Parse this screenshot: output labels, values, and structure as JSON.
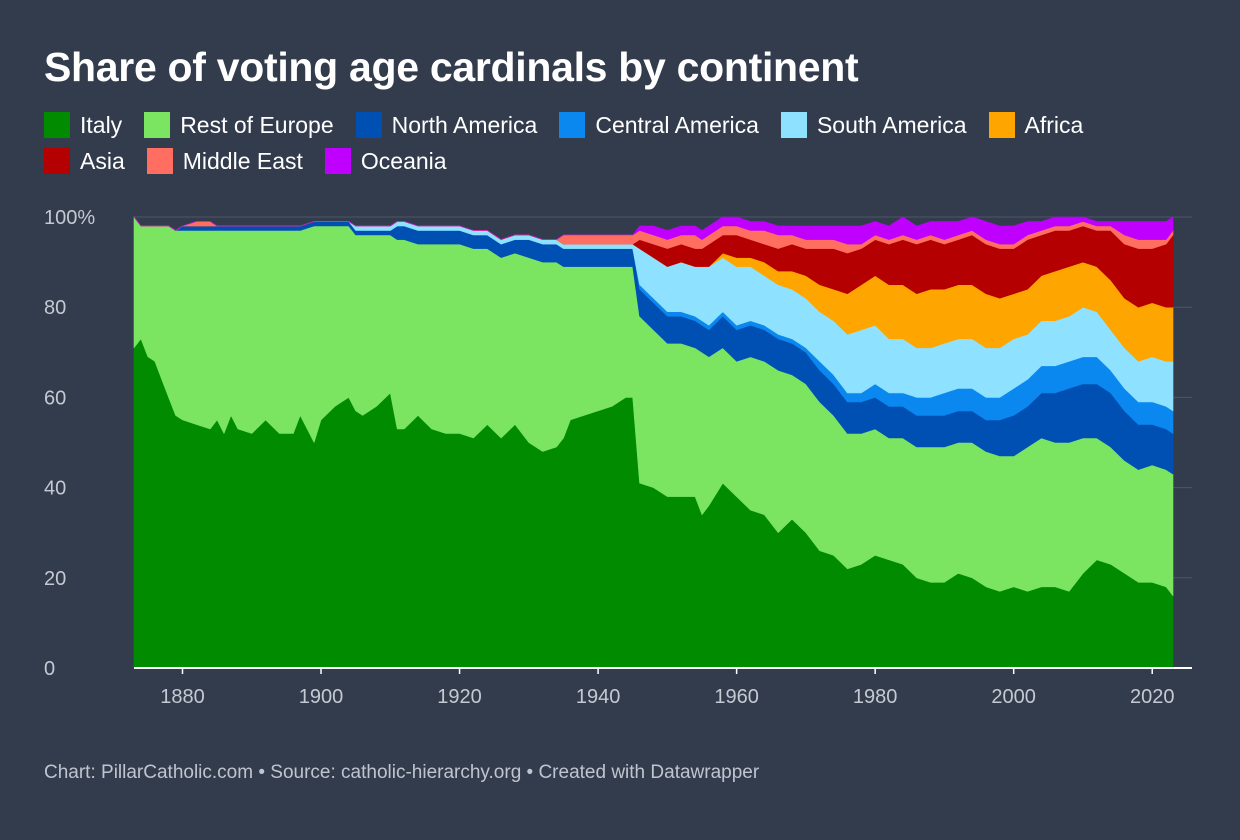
{
  "footer": "Chart: PillarCatholic.com • Source: catholic-hierarchy.org • Created with Datawrapper",
  "chart_data": {
    "type": "area",
    "stacked": true,
    "title": "Share of voting age cardinals by continent",
    "xlabel": "",
    "ylabel": "",
    "ylim": [
      0,
      100
    ],
    "xlim": [
      1873,
      2023
    ],
    "y_ticks": [
      "0",
      "20",
      "40",
      "60",
      "80",
      "100%"
    ],
    "y_tick_values": [
      0,
      20,
      40,
      60,
      80,
      100
    ],
    "x_ticks": [
      "1880",
      "1900",
      "1920",
      "1940",
      "1960",
      "1980",
      "2000",
      "2020"
    ],
    "x_tick_values": [
      1880,
      1900,
      1920,
      1940,
      1960,
      1980,
      2000,
      2020
    ],
    "grid": true,
    "legend_position": "top-left",
    "x": [
      1873,
      1874,
      1875,
      1876,
      1877,
      1878,
      1879,
      1880,
      1882,
      1884,
      1885,
      1886,
      1887,
      1888,
      1890,
      1892,
      1894,
      1896,
      1897,
      1899,
      1900,
      1902,
      1904,
      1905,
      1906,
      1908,
      1910,
      1911,
      1912,
      1914,
      1916,
      1918,
      1920,
      1922,
      1924,
      1926,
      1928,
      1930,
      1932,
      1934,
      1935,
      1936,
      1938,
      1940,
      1942,
      1944,
      1945,
      1946,
      1948,
      1950,
      1952,
      1954,
      1955,
      1956,
      1958,
      1960,
      1962,
      1964,
      1966,
      1968,
      1970,
      1972,
      1974,
      1976,
      1978,
      1980,
      1982,
      1984,
      1986,
      1988,
      1990,
      1992,
      1994,
      1996,
      1998,
      2000,
      2002,
      2004,
      2006,
      2008,
      2010,
      2012,
      2014,
      2016,
      2018,
      2020,
      2022,
      2023
    ],
    "series": [
      {
        "name": "Italy",
        "color": "#008b00",
        "values": [
          71,
          73,
          69,
          68,
          64,
          60,
          56,
          55,
          54,
          53,
          55,
          52,
          56,
          53,
          52,
          55,
          52,
          52,
          56,
          50,
          55,
          58,
          60,
          57,
          56,
          58,
          61,
          53,
          53,
          56,
          53,
          52,
          52,
          51,
          54,
          51,
          54,
          50,
          48,
          49,
          51,
          55,
          56,
          57,
          58,
          60,
          60,
          41,
          40,
          38,
          38,
          38,
          34,
          36,
          41,
          38,
          35,
          34,
          30,
          33,
          30,
          26,
          25,
          22,
          23,
          25,
          24,
          23,
          20,
          19,
          19,
          21,
          20,
          18,
          17,
          18,
          17,
          18,
          18,
          17,
          21,
          24,
          23,
          21,
          19,
          19,
          18,
          16
        ]
      },
      {
        "name": "Rest of Europe",
        "color": "#7be562",
        "values": [
          29,
          25,
          29,
          30,
          34,
          38,
          41,
          42,
          43,
          44,
          42,
          45,
          41,
          44,
          45,
          42,
          45,
          45,
          41,
          48,
          43,
          40,
          38,
          39,
          40,
          38,
          35,
          42,
          42,
          38,
          41,
          42,
          42,
          42,
          39,
          40,
          38,
          41,
          42,
          41,
          38,
          34,
          33,
          32,
          31,
          29,
          29,
          37,
          35,
          34,
          34,
          33,
          36,
          33,
          30,
          30,
          34,
          34,
          36,
          32,
          33,
          33,
          31,
          30,
          29,
          28,
          27,
          28,
          29,
          30,
          30,
          29,
          30,
          30,
          30,
          29,
          32,
          33,
          32,
          33,
          30,
          27,
          26,
          25,
          25,
          26,
          26,
          27
        ]
      },
      {
        "name": "North America",
        "color": "#0050b4",
        "values": [
          0,
          0,
          0,
          0,
          0,
          0,
          0,
          1,
          1,
          1,
          1,
          1,
          1,
          1,
          1,
          1,
          1,
          1,
          1,
          1,
          1,
          1,
          1,
          1,
          1,
          1,
          1,
          3,
          3,
          3,
          3,
          3,
          3,
          3,
          3,
          3,
          3,
          4,
          4,
          4,
          4,
          4,
          4,
          4,
          4,
          4,
          4,
          6,
          6,
          6,
          6,
          6,
          6,
          6,
          7,
          7,
          7,
          7,
          7,
          7,
          7,
          7,
          7,
          7,
          7,
          7,
          7,
          7,
          7,
          7,
          7,
          7,
          7,
          7,
          8,
          9,
          9,
          10,
          11,
          12,
          12,
          12,
          12,
          11,
          10,
          9,
          9,
          9
        ]
      },
      {
        "name": "Central America",
        "color": "#0a88f0",
        "values": [
          0,
          0,
          0,
          0,
          0,
          0,
          0,
          0,
          0,
          0,
          0,
          0,
          0,
          0,
          0,
          0,
          0,
          0,
          0,
          0,
          0,
          0,
          0,
          0,
          0,
          0,
          0,
          0,
          0,
          0,
          0,
          0,
          0,
          0,
          0,
          0,
          0,
          0,
          0,
          0,
          0,
          0,
          0,
          0,
          0,
          0,
          0,
          1,
          1,
          1,
          1,
          1,
          1,
          1,
          1,
          1,
          1,
          1,
          1,
          1,
          1,
          2,
          2,
          2,
          2,
          3,
          3,
          3,
          4,
          4,
          5,
          5,
          5,
          5,
          5,
          6,
          6,
          6,
          6,
          6,
          6,
          6,
          5,
          5,
          5,
          5,
          5,
          5
        ]
      },
      {
        "name": "South America",
        "color": "#8ee2ff",
        "values": [
          0,
          0,
          0,
          0,
          0,
          0,
          0,
          0,
          0,
          0,
          0,
          0,
          0,
          0,
          0,
          0,
          0,
          0,
          0,
          0,
          0,
          0,
          0,
          1,
          1,
          1,
          1,
          1,
          1,
          1,
          1,
          1,
          1,
          1,
          1,
          1,
          1,
          1,
          1,
          1,
          1,
          1,
          1,
          1,
          1,
          1,
          1,
          8,
          9,
          10,
          11,
          11,
          12,
          13,
          12,
          13,
          12,
          11,
          11,
          11,
          11,
          11,
          12,
          13,
          14,
          13,
          12,
          12,
          11,
          11,
          11,
          11,
          11,
          11,
          11,
          11,
          10,
          10,
          10,
          10,
          11,
          10,
          9,
          9,
          9,
          10,
          10,
          11
        ]
      },
      {
        "name": "Africa",
        "color": "#ffa500",
        "values": [
          0,
          0,
          0,
          0,
          0,
          0,
          0,
          0,
          0,
          0,
          0,
          0,
          0,
          0,
          0,
          0,
          0,
          0,
          0,
          0,
          0,
          0,
          0,
          0,
          0,
          0,
          0,
          0,
          0,
          0,
          0,
          0,
          0,
          0,
          0,
          0,
          0,
          0,
          0,
          0,
          0,
          0,
          0,
          0,
          0,
          0,
          0,
          0,
          0,
          0,
          0,
          0,
          0,
          0,
          1,
          2,
          2,
          3,
          3,
          4,
          5,
          6,
          7,
          9,
          10,
          11,
          12,
          12,
          12,
          13,
          12,
          12,
          12,
          12,
          11,
          10,
          10,
          10,
          11,
          11,
          10,
          10,
          11,
          11,
          12,
          12,
          12,
          12
        ]
      },
      {
        "name": "Asia",
        "color": "#b40000",
        "values": [
          0,
          0,
          0,
          0,
          0,
          0,
          0,
          0,
          0,
          0,
          0,
          0,
          0,
          0,
          0,
          0,
          0,
          0,
          0,
          0,
          0,
          0,
          0,
          0,
          0,
          0,
          0,
          0,
          0,
          0,
          0,
          0,
          0,
          0,
          0,
          0,
          0,
          0,
          0,
          0,
          0,
          0,
          0,
          0,
          0,
          0,
          0,
          2,
          3,
          4,
          4,
          4,
          4,
          5,
          4,
          5,
          4,
          4,
          5,
          6,
          6,
          8,
          9,
          9,
          8,
          8,
          9,
          10,
          11,
          11,
          10,
          10,
          11,
          11,
          11,
          10,
          11,
          9,
          9,
          8,
          8,
          8,
          11,
          12,
          13,
          12,
          14,
          16
        ]
      },
      {
        "name": "Middle East",
        "color": "#ff6e61",
        "values": [
          0,
          0,
          0,
          0,
          0,
          0,
          0,
          0,
          1,
          1,
          0,
          0,
          0,
          0,
          0,
          0,
          0,
          0,
          0,
          0,
          0,
          0,
          0,
          0,
          0,
          0,
          0,
          0,
          0,
          0,
          0,
          0,
          0,
          0,
          0,
          0,
          0,
          0,
          0,
          0,
          2,
          2,
          2,
          2,
          2,
          2,
          2,
          2,
          2,
          2,
          2,
          3,
          2,
          2,
          2,
          2,
          2,
          3,
          3,
          2,
          2,
          2,
          2,
          2,
          1,
          1,
          1,
          1,
          1,
          1,
          1,
          1,
          1,
          1,
          1,
          1,
          1,
          1,
          1,
          1,
          1,
          1,
          1,
          2,
          2,
          2,
          1,
          1
        ]
      },
      {
        "name": "Oceania",
        "color": "#c000ff",
        "values": [
          0,
          0,
          0,
          0,
          0,
          0,
          0,
          0,
          0,
          0,
          0,
          0,
          0,
          0,
          0,
          0,
          0,
          0,
          0,
          0,
          0,
          0,
          0,
          0,
          0,
          0,
          0,
          0,
          0,
          0,
          0,
          0,
          0,
          0,
          0,
          0,
          0,
          0,
          0,
          0,
          0,
          0,
          0,
          0,
          0,
          0,
          0,
          1,
          2,
          2,
          2,
          2,
          2,
          2,
          2,
          2,
          2,
          2,
          2,
          2,
          3,
          3,
          3,
          4,
          4,
          3,
          3,
          4,
          3,
          3,
          4,
          3,
          3,
          4,
          4,
          4,
          3,
          2,
          2,
          2,
          1,
          1,
          1,
          3,
          4,
          4,
          4,
          3
        ]
      }
    ]
  }
}
